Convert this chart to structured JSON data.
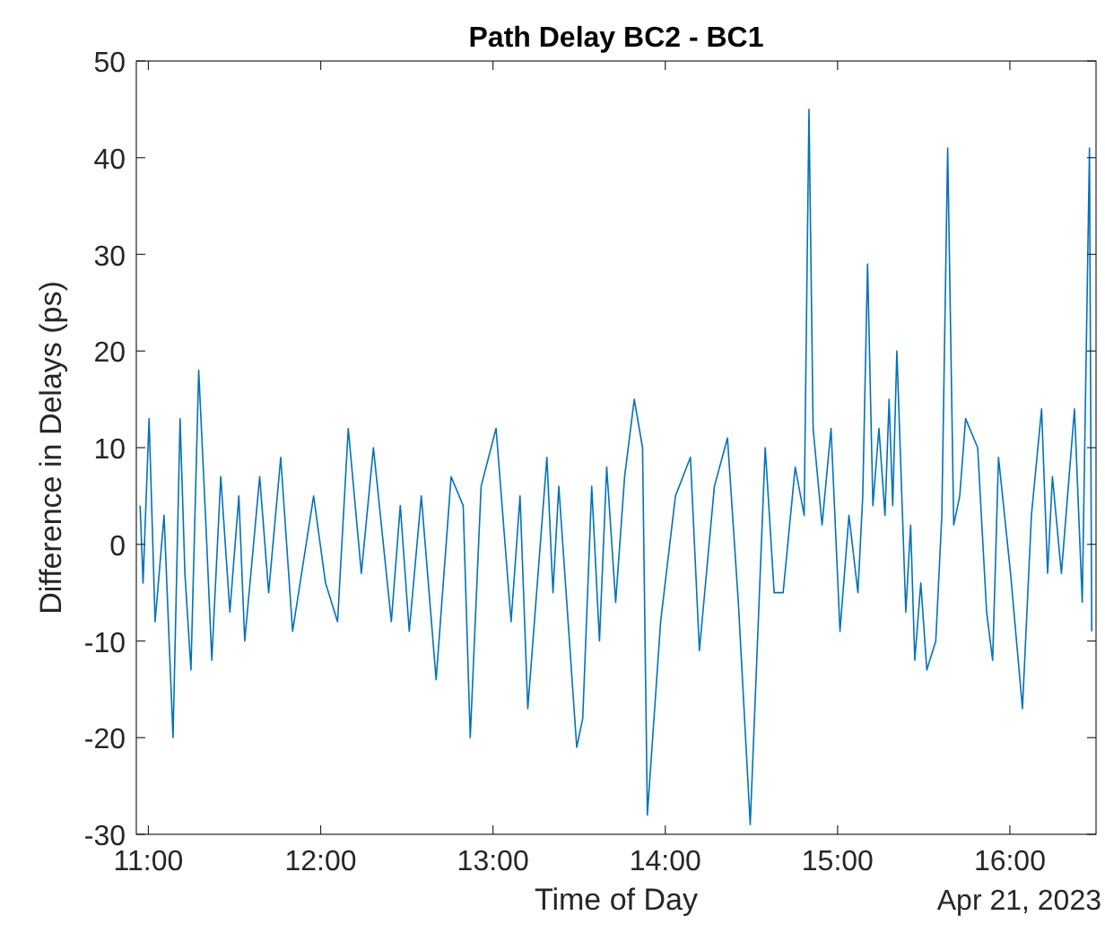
{
  "chart_data": {
    "type": "line",
    "title": "Path Delay BC2 - BC1",
    "xlabel": "Time of Day",
    "ylabel": "Difference in Delays (ps)",
    "annotations": [
      "Apr 21, 2023"
    ],
    "xlim": [
      10.93,
      16.5
    ],
    "ylim": [
      -30,
      50
    ],
    "xticks": [
      {
        "value": 11,
        "label": "11:00"
      },
      {
        "value": 12,
        "label": "12:00"
      },
      {
        "value": 13,
        "label": "13:00"
      },
      {
        "value": 14,
        "label": "14:00"
      },
      {
        "value": 15,
        "label": "15:00"
      },
      {
        "value": 16,
        "label": "16:00"
      }
    ],
    "yticks": [
      -30,
      -20,
      -10,
      0,
      10,
      20,
      30,
      40,
      50
    ],
    "grid": false,
    "marker": "none",
    "line_style": "solid",
    "x": [
      10.952,
      10.969,
      11.004,
      11.039,
      11.091,
      11.143,
      11.184,
      11.212,
      11.247,
      11.292,
      11.334,
      11.368,
      11.42,
      11.473,
      11.525,
      11.559,
      11.646,
      11.698,
      11.768,
      11.837,
      11.959,
      12.028,
      12.098,
      12.16,
      12.236,
      12.306,
      12.41,
      12.462,
      12.514,
      12.584,
      12.67,
      12.757,
      12.827,
      12.868,
      12.931,
      13.018,
      13.105,
      13.157,
      13.202,
      13.313,
      13.348,
      13.382,
      13.486,
      13.521,
      13.573,
      13.618,
      13.66,
      13.712,
      13.764,
      13.82,
      13.868,
      13.896,
      13.973,
      14.059,
      14.146,
      14.198,
      14.285,
      14.361,
      14.424,
      14.493,
      14.58,
      14.632,
      14.684,
      14.754,
      14.806,
      14.834,
      14.858,
      14.91,
      14.962,
      15.014,
      15.066,
      15.118,
      15.146,
      15.174,
      15.205,
      15.24,
      15.275,
      15.299,
      15.32,
      15.344,
      15.396,
      15.424,
      15.448,
      15.483,
      15.518,
      15.57,
      15.605,
      15.639,
      15.674,
      15.709,
      15.743,
      15.813,
      15.865,
      15.9,
      15.934,
      16.004,
      16.073,
      16.125,
      16.184,
      16.219,
      16.247,
      16.299,
      16.375,
      16.42,
      16.462,
      16.475
    ],
    "series": [
      {
        "color": "#0072bd",
        "values": [
          4,
          -4,
          13,
          -8,
          3,
          -20,
          13,
          -3,
          -13,
          18,
          2,
          -12,
          7,
          -7,
          5,
          -10,
          7,
          -5,
          9,
          -9,
          5,
          -4,
          -8,
          12,
          -3,
          10,
          -8,
          4,
          -9,
          5,
          -14,
          7,
          4,
          -20,
          6,
          12,
          -8,
          5,
          -17,
          9,
          -5,
          6,
          -21,
          -18,
          6,
          -10,
          8,
          -6,
          7,
          15,
          10,
          -28,
          -8,
          5,
          9,
          -11,
          6,
          11,
          -6,
          -29,
          10,
          -5,
          -5,
          8,
          3,
          45,
          12,
          2,
          12,
          -9,
          3,
          -5,
          5,
          29,
          4,
          12,
          3,
          15,
          4,
          20,
          -7,
          2,
          -12,
          -4,
          -13,
          -10,
          3,
          41,
          2,
          5,
          13,
          10,
          -7,
          -12,
          9,
          -3,
          -17,
          3,
          14,
          -3,
          7,
          -3,
          14,
          -6,
          41,
          -9
        ]
      }
    ]
  }
}
